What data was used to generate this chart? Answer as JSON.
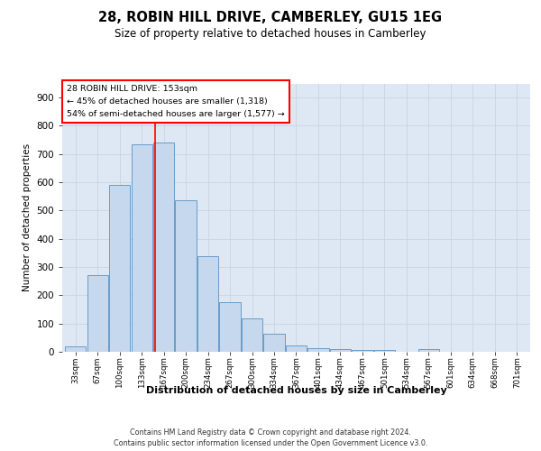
{
  "title": "28, ROBIN HILL DRIVE, CAMBERLEY, GU15 1EG",
  "subtitle": "Size of property relative to detached houses in Camberley",
  "xlabel": "Distribution of detached houses by size in Camberley",
  "ylabel": "Number of detached properties",
  "categories": [
    "33sqm",
    "67sqm",
    "100sqm",
    "133sqm",
    "167sqm",
    "200sqm",
    "234sqm",
    "267sqm",
    "300sqm",
    "334sqm",
    "367sqm",
    "401sqm",
    "434sqm",
    "467sqm",
    "501sqm",
    "534sqm",
    "567sqm",
    "601sqm",
    "634sqm",
    "668sqm",
    "701sqm"
  ],
  "bar_color": "#c5d8ed",
  "bar_edge_color": "#6a9cc8",
  "grid_color": "#c8d4e2",
  "background_color": "#dde8f4",
  "annotation_line1": "28 ROBIN HILL DRIVE: 153sqm",
  "annotation_line2": "← 45% of detached houses are smaller (1,318)",
  "annotation_line3": "54% of semi-detached houses are larger (1,577) →",
  "annotation_box_color": "white",
  "annotation_box_edge_color": "red",
  "ylim": [
    0,
    950
  ],
  "yticks": [
    0,
    100,
    200,
    300,
    400,
    500,
    600,
    700,
    800,
    900
  ],
  "footer_line1": "Contains HM Land Registry data © Crown copyright and database right 2024.",
  "footer_line2": "Contains public sector information licensed under the Open Government Licence v3.0.",
  "bar_data": [
    20,
    270,
    590,
    735,
    740,
    535,
    340,
    175,
    118,
    65,
    22,
    12,
    8,
    7,
    6,
    0,
    10,
    0,
    0,
    0,
    0
  ]
}
